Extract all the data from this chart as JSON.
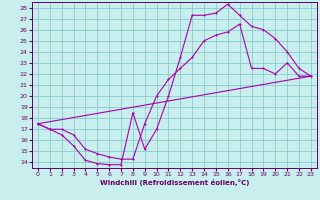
{
  "xlabel": "Windchill (Refroidissement éolien,°C)",
  "bg_color": "#c8eeee",
  "grid_color": "#88cccc",
  "line_color": "#aa00aa",
  "axis_color": "#660066",
  "xlim": [
    -0.5,
    23.5
  ],
  "ylim": [
    13.5,
    28.5
  ],
  "xticks": [
    0,
    1,
    2,
    3,
    4,
    5,
    6,
    7,
    8,
    9,
    10,
    11,
    12,
    13,
    14,
    15,
    16,
    17,
    18,
    19,
    20,
    21,
    22,
    23
  ],
  "yticks": [
    14,
    15,
    16,
    17,
    18,
    19,
    20,
    21,
    22,
    23,
    24,
    25,
    26,
    27,
    28
  ],
  "curve1_x": [
    0,
    1,
    2,
    3,
    4,
    5,
    6,
    7,
    8,
    9,
    10,
    11,
    12,
    13,
    14,
    15,
    16,
    17,
    18,
    19,
    20,
    21,
    22,
    23
  ],
  "curve1_y": [
    17.5,
    17.0,
    16.5,
    15.5,
    14.2,
    13.9,
    13.8,
    13.8,
    18.5,
    15.2,
    17.0,
    20.0,
    23.5,
    27.3,
    27.3,
    27.5,
    28.3,
    27.3,
    26.3,
    26.0,
    25.2,
    24.0,
    22.5,
    21.8
  ],
  "curve2_x": [
    0,
    1,
    2,
    3,
    4,
    5,
    6,
    7,
    8,
    9,
    10,
    11,
    12,
    13,
    14,
    15,
    16,
    17,
    18,
    19,
    20,
    21,
    22,
    23
  ],
  "curve2_y": [
    17.5,
    17.0,
    17.0,
    16.5,
    15.2,
    14.8,
    14.5,
    14.3,
    14.3,
    17.5,
    20.0,
    21.5,
    22.5,
    23.5,
    25.0,
    25.5,
    25.8,
    26.5,
    22.5,
    22.5,
    22.0,
    23.0,
    21.8,
    21.8
  ],
  "line3_x": [
    0,
    23
  ],
  "line3_y": [
    17.5,
    21.8
  ]
}
